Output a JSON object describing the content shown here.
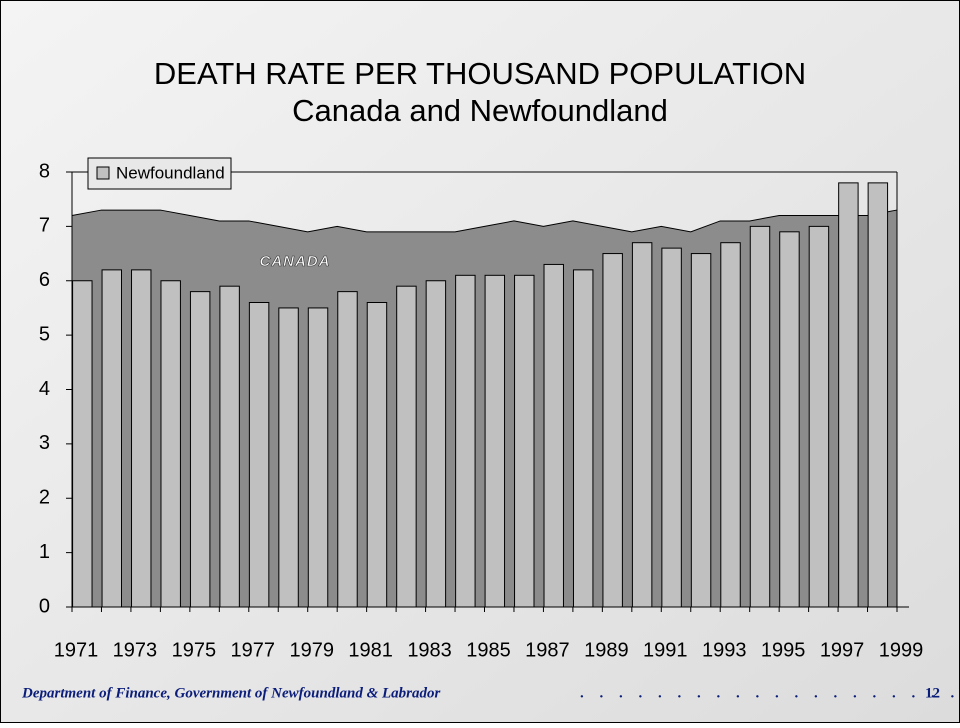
{
  "chart_data": {
    "type": "bar",
    "title": "DEATH RATE PER THOUSAND POPULATION",
    "subtitle": "Canada and Newfoundland",
    "categories": [
      "1971",
      null,
      "1973",
      null,
      "1975",
      null,
      "1977",
      null,
      "1979",
      null,
      "1981",
      null,
      "1983",
      null,
      "1985",
      null,
      "1987",
      null,
      "1989",
      null,
      "1991",
      null,
      "1993",
      null,
      "1995",
      null,
      "1997",
      null,
      "1999"
    ],
    "series": [
      {
        "name": "CANADA",
        "type": "area",
        "color": "#8c8c8c",
        "values": [
          7.2,
          7.3,
          7.3,
          7.3,
          7.2,
          7.1,
          7.1,
          7.0,
          6.9,
          7.0,
          6.9,
          6.9,
          6.9,
          6.9,
          7.0,
          7.1,
          7.0,
          7.1,
          7.0,
          6.9,
          7.0,
          6.9,
          7.1,
          7.1,
          7.2,
          7.2,
          7.2,
          7.2,
          7.3
        ]
      },
      {
        "name": "Newfoundland",
        "type": "bar",
        "color": "#c0c0c0",
        "values": [
          6.0,
          6.2,
          6.2,
          6.0,
          5.8,
          5.9,
          5.6,
          5.5,
          5.5,
          5.8,
          5.6,
          5.9,
          6.0,
          6.1,
          6.1,
          6.1,
          6.3,
          6.2,
          6.5,
          6.7,
          6.6,
          6.5,
          6.7,
          7.0,
          6.9,
          7.0,
          7.8,
          7.8,
          null
        ]
      }
    ],
    "ylim": [
      0,
      8
    ],
    "yticks": [
      0,
      1,
      2,
      3,
      4,
      5,
      6,
      7,
      8
    ],
    "grid": false,
    "legend": "top-left"
  },
  "footer": {
    "text": "Department of Finance, Government of Newfoundland & Labrador",
    "page": "12"
  }
}
